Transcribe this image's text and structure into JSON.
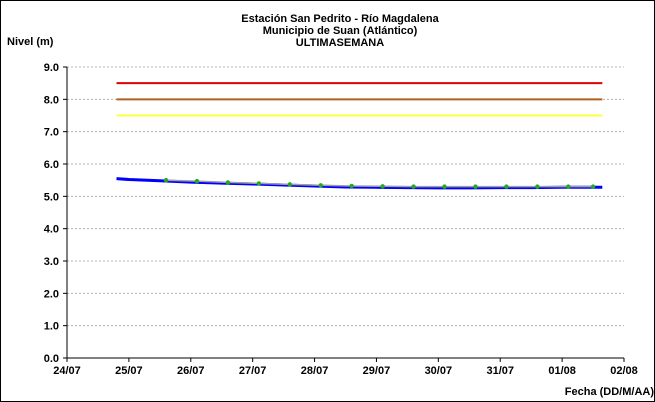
{
  "chart_data": {
    "type": "line",
    "title_lines": [
      "Estación San Pedrito - Río Magdalena",
      "Municipio de Suan (Atlántico)",
      "ULTIMASEMANA"
    ],
    "ylabel": "Nivel (m)",
    "xlabel": "Fecha (DD/M/AA)",
    "ylim": [
      0,
      9
    ],
    "y_ticks": [
      "0.0",
      "1.0",
      "2.0",
      "3.0",
      "4.0",
      "5.0",
      "6.0",
      "7.0",
      "8.0",
      "9.0"
    ],
    "x_ticks": [
      "24/07",
      "25/07",
      "26/07",
      "27/07",
      "28/07",
      "29/07",
      "30/07",
      "31/07",
      "01/08",
      "02/08"
    ],
    "grid": "horizontal",
    "thresholds": [
      {
        "value": 8.5,
        "color": "#e00000"
      },
      {
        "value": 8.0,
        "color": "#b06020"
      },
      {
        "value": 7.5,
        "color": "#ffff40"
      }
    ],
    "series": [
      {
        "kind": "observed",
        "color": "#0000ff",
        "x": [
          0.8,
          1.0,
          1.5,
          2.0,
          2.5,
          3.0,
          3.5,
          4.0,
          4.5,
          5.0,
          5.5,
          6.0,
          6.5,
          7.0,
          7.5,
          8.0,
          8.5,
          8.65
        ],
        "y": [
          5.55,
          5.52,
          5.48,
          5.44,
          5.41,
          5.38,
          5.35,
          5.32,
          5.29,
          5.28,
          5.27,
          5.26,
          5.26,
          5.27,
          5.27,
          5.28,
          5.28,
          5.28
        ]
      },
      {
        "kind": "modeled",
        "color": "#a0a0a0",
        "marker_color": "#22aa22",
        "x": [
          1.6,
          2.1,
          2.6,
          3.1,
          3.6,
          4.1,
          4.6,
          5.1,
          5.6,
          6.1,
          6.6,
          7.1,
          7.6,
          8.1,
          8.5
        ],
        "y": [
          5.5,
          5.47,
          5.43,
          5.4,
          5.37,
          5.34,
          5.32,
          5.31,
          5.3,
          5.3,
          5.3,
          5.3,
          5.3,
          5.3,
          5.3
        ]
      }
    ]
  }
}
